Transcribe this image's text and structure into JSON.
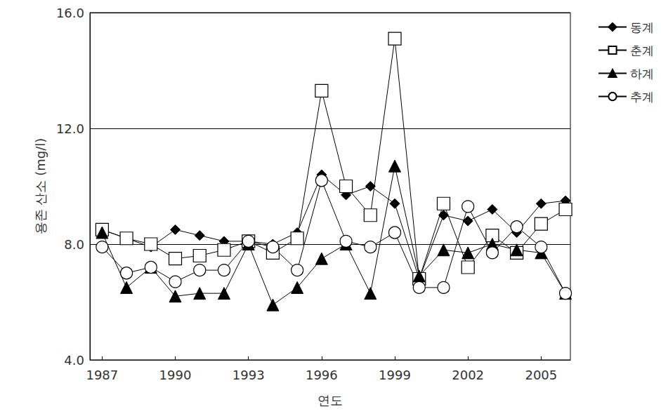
{
  "chart_data": {
    "type": "line",
    "x_label": "연도",
    "y_label": "용존 산소 (mg/l)",
    "x": [
      1987,
      1988,
      1989,
      1990,
      1991,
      1992,
      1993,
      1994,
      1995,
      1996,
      1997,
      1998,
      1999,
      2000,
      2001,
      2002,
      2003,
      2004,
      2005,
      2006
    ],
    "series": [
      {
        "name": "동계",
        "color": "#000000",
        "marker": "diamond",
        "line_style": "solid",
        "values": [
          8.5,
          8.2,
          7.9,
          8.5,
          8.3,
          8.1,
          8.1,
          8.0,
          8.4,
          10.4,
          9.7,
          10.0,
          9.4,
          6.8,
          9.0,
          8.8,
          9.2,
          8.4,
          9.4,
          9.5
        ]
      },
      {
        "name": "춘계",
        "color": "#000000",
        "marker": "square-open",
        "line_style": "solid",
        "values": [
          8.5,
          8.2,
          8.0,
          7.5,
          7.6,
          7.8,
          8.1,
          7.7,
          8.2,
          13.3,
          10.0,
          9.0,
          15.1,
          6.8,
          9.4,
          7.2,
          8.3,
          7.7,
          8.7,
          9.2
        ]
      },
      {
        "name": "하계",
        "color": "#000000",
        "marker": "triangle",
        "line_style": "solid",
        "values": [
          8.4,
          6.5,
          7.2,
          6.2,
          6.3,
          6.3,
          8.0,
          5.9,
          6.5,
          7.5,
          8.0,
          6.3,
          10.7,
          6.9,
          7.8,
          7.7,
          8.0,
          7.8,
          7.7,
          6.3
        ]
      },
      {
        "name": "추계",
        "color": "#000000",
        "marker": "circle-open",
        "line_style": "solid",
        "values": [
          7.9,
          7.0,
          7.2,
          6.7,
          7.1,
          7.1,
          8.1,
          7.9,
          7.1,
          10.2,
          8.1,
          7.9,
          8.4,
          6.5,
          6.5,
          9.3,
          7.7,
          8.6,
          7.9,
          6.3
        ]
      }
    ],
    "xlim": [
      1986.5,
      2006.2
    ],
    "xticks": [
      1987,
      1990,
      1993,
      1996,
      1999,
      2002,
      2005
    ],
    "ylim": [
      4,
      16
    ],
    "yticks": [
      {
        "value": 4,
        "label": "4.0"
      },
      {
        "value": 8,
        "label": "8.0"
      },
      {
        "value": 12,
        "label": "12.0"
      },
      {
        "value": 16,
        "label": "16.0"
      }
    ],
    "grid": true,
    "legend": "right"
  }
}
